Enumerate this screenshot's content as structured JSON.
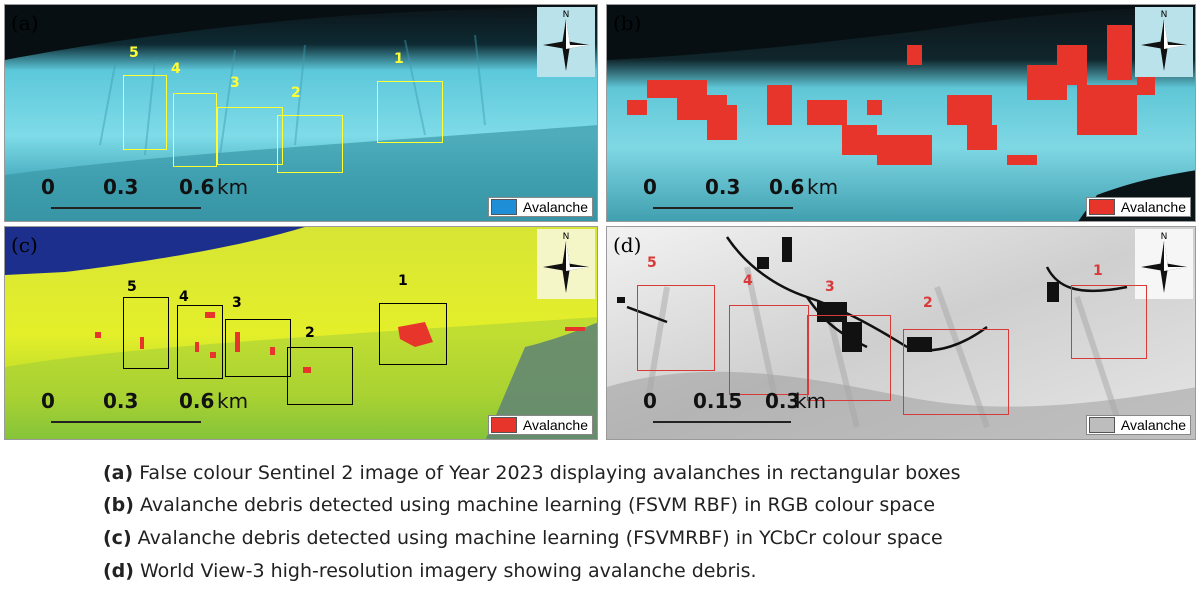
{
  "panels": {
    "a": {
      "label": "(a)",
      "scale": {
        "ticks": [
          "0",
          "0.3",
          "0.6"
        ],
        "unit": "km"
      },
      "legend": {
        "text": "Avalanche",
        "color": "#1e8fd6"
      },
      "box_numbers": [
        "5",
        "4",
        "3",
        "2",
        "1"
      ],
      "box_color": "#ffff33"
    },
    "b": {
      "label": "(b)",
      "scale": {
        "ticks": [
          "0",
          "0.3",
          "0.6"
        ],
        "unit": "km"
      },
      "legend": {
        "text": "Avalanche",
        "color": "#e8352b"
      }
    },
    "c": {
      "label": "(c)",
      "scale": {
        "ticks": [
          "0",
          "0.3",
          "0.6"
        ],
        "unit": "km"
      },
      "legend": {
        "text": "Avalanche",
        "color": "#e8352b"
      },
      "box_numbers": [
        "5",
        "4",
        "3",
        "2",
        "1"
      ],
      "box_color": "#000000"
    },
    "d": {
      "label": "(d)",
      "scale": {
        "ticks": [
          "0",
          "0.15",
          "0.3"
        ],
        "unit": "km"
      },
      "legend": {
        "text": "Avalanche",
        "color": "#bdbdbd"
      },
      "box_numbers": [
        "5",
        "4",
        "3",
        "2",
        "1"
      ],
      "box_color": "#d83a3a"
    }
  },
  "compass_north": "N",
  "captions": [
    {
      "tag": "(a)",
      "text": " False colour Sentinel 2 image of Year 2023 displaying avalanches in rectangular boxes"
    },
    {
      "tag": "(b)",
      "text": " Avalanche debris detected using machine learning (FSVM RBF) in RGB colour space"
    },
    {
      "tag": "(c)",
      "text": " Avalanche debris detected using machine learning (FSVMRBF) in YCbCr colour space"
    },
    {
      "tag": "(d)",
      "text": " World View-3 high-resolution imagery showing avalanche debris."
    }
  ]
}
